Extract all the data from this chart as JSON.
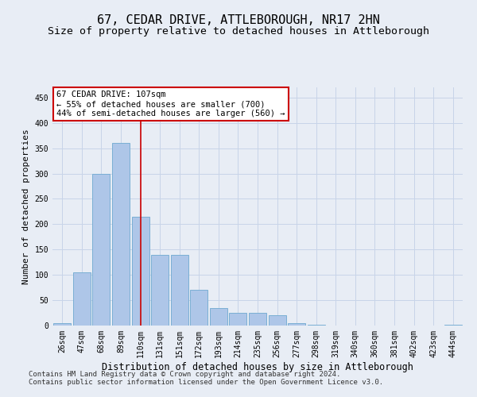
{
  "title": "67, CEDAR DRIVE, ATTLEBOROUGH, NR17 2HN",
  "subtitle": "Size of property relative to detached houses in Attleborough",
  "xlabel": "Distribution of detached houses by size in Attleborough",
  "ylabel": "Number of detached properties",
  "categories": [
    "26sqm",
    "47sqm",
    "68sqm",
    "89sqm",
    "110sqm",
    "131sqm",
    "151sqm",
    "172sqm",
    "193sqm",
    "214sqm",
    "235sqm",
    "256sqm",
    "277sqm",
    "298sqm",
    "319sqm",
    "340sqm",
    "360sqm",
    "381sqm",
    "402sqm",
    "423sqm",
    "444sqm"
  ],
  "values": [
    5,
    105,
    300,
    360,
    215,
    140,
    140,
    70,
    35,
    25,
    25,
    20,
    5,
    2,
    0,
    0,
    0,
    0,
    0,
    0,
    2
  ],
  "bar_color": "#aec6e8",
  "bar_edgecolor": "#7aafd4",
  "bar_linewidth": 0.7,
  "vline_x_index": 4,
  "vline_color": "#cc0000",
  "vline_linewidth": 1.2,
  "annotation_line1": "67 CEDAR DRIVE: 107sqm",
  "annotation_line2": "← 55% of detached houses are smaller (700)",
  "annotation_line3": "44% of semi-detached houses are larger (560) →",
  "annotation_box_edgecolor": "#cc0000",
  "annotation_box_facecolor": "#ffffff",
  "ylim": [
    0,
    470
  ],
  "yticks": [
    0,
    50,
    100,
    150,
    200,
    250,
    300,
    350,
    400,
    450
  ],
  "grid_color": "#c8d4e8",
  "background_color": "#e8edf5",
  "footer_line1": "Contains HM Land Registry data © Crown copyright and database right 2024.",
  "footer_line2": "Contains public sector information licensed under the Open Government Licence v3.0.",
  "title_fontsize": 11,
  "subtitle_fontsize": 9.5,
  "xlabel_fontsize": 8.5,
  "ylabel_fontsize": 8,
  "tick_fontsize": 7,
  "annotation_fontsize": 7.5,
  "footer_fontsize": 6.5
}
